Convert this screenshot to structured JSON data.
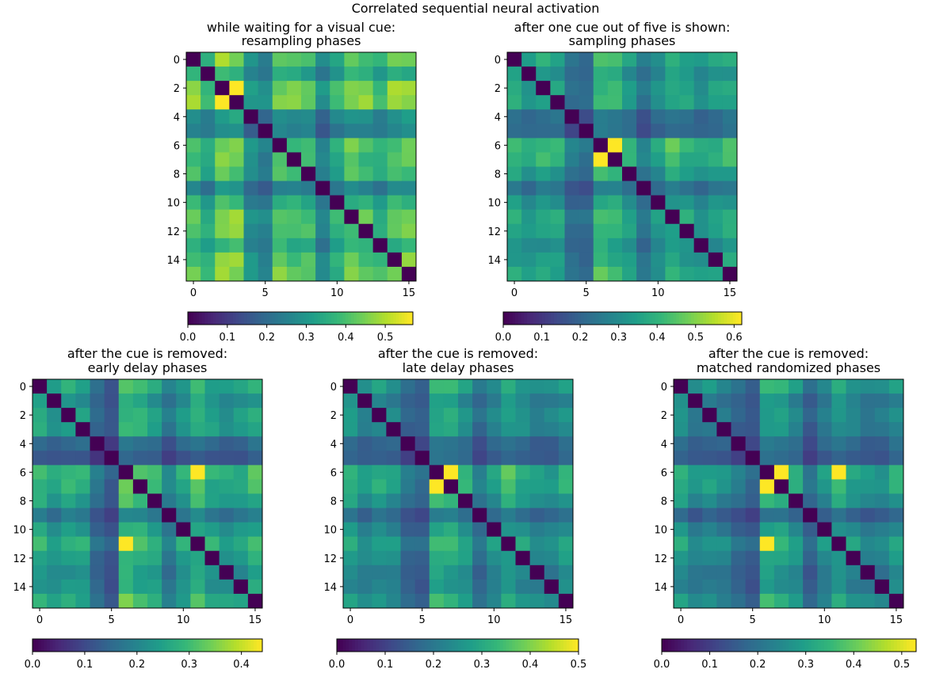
{
  "figure": {
    "suptitle": "Correlated sequential neural activation"
  },
  "colormap": {
    "name": "viridis",
    "stops": [
      "#440154",
      "#482878",
      "#3e4989",
      "#31688e",
      "#26828e",
      "#1f9e89",
      "#35b779",
      "#6ece58",
      "#b5de2b",
      "#fde725"
    ]
  },
  "chart_data": [
    {
      "type": "heatmap",
      "title_line1": "while waiting for a visual cue:",
      "title_line2": "resampling phases",
      "size": 16,
      "vmin": 0,
      "vmax": 0.57,
      "diagonal": 0.0,
      "highlight_pairs": [
        [
          2,
          3,
          0.57
        ]
      ],
      "row_strength": [
        0.46,
        0.32,
        0.56,
        0.55,
        0.22,
        0.17,
        0.46,
        0.42,
        0.4,
        0.18,
        0.33,
        0.48,
        0.44,
        0.34,
        0.47,
        0.5
      ],
      "xticks": [
        0,
        5,
        10,
        15
      ],
      "yticks": [
        0,
        2,
        4,
        6,
        8,
        10,
        12,
        14
      ],
      "colorbar_ticks": [
        0.0,
        0.1,
        0.2,
        0.3,
        0.4,
        0.5
      ],
      "colorbar_labels": [
        "0.0",
        "0.1",
        "0.2",
        "0.3",
        "0.4",
        "0.5"
      ]
    },
    {
      "type": "heatmap",
      "title_line1": "after one cue out of five is shown:",
      "title_line2": "sampling phases",
      "size": 16,
      "vmin": 0,
      "vmax": 0.62,
      "diagonal": 0.0,
      "highlight_pairs": [
        [
          6,
          7,
          0.62
        ]
      ],
      "row_strength": [
        0.42,
        0.32,
        0.4,
        0.38,
        0.16,
        0.14,
        0.55,
        0.5,
        0.36,
        0.18,
        0.3,
        0.44,
        0.38,
        0.3,
        0.36,
        0.42
      ],
      "xticks": [
        0,
        5,
        10,
        15
      ],
      "yticks": [
        0,
        2,
        4,
        6,
        8,
        10,
        12,
        14
      ],
      "colorbar_ticks": [
        0.0,
        0.1,
        0.2,
        0.3,
        0.4,
        0.5,
        0.6
      ],
      "colorbar_labels": [
        "0.0",
        "0.1",
        "0.2",
        "0.3",
        "0.4",
        "0.5",
        "0.6"
      ]
    },
    {
      "type": "heatmap",
      "title_line1": "after the cue is removed:",
      "title_line2": "early delay phases",
      "size": 16,
      "vmin": 0,
      "vmax": 0.44,
      "diagonal": 0.0,
      "highlight_pairs": [
        [
          6,
          11,
          0.44
        ]
      ],
      "row_strength": [
        0.3,
        0.22,
        0.28,
        0.26,
        0.1,
        0.06,
        0.4,
        0.34,
        0.28,
        0.14,
        0.24,
        0.36,
        0.26,
        0.22,
        0.24,
        0.32
      ],
      "xticks": [
        0,
        5,
        10,
        15
      ],
      "yticks": [
        0,
        2,
        4,
        6,
        8,
        10,
        12,
        14
      ],
      "colorbar_ticks": [
        0.0,
        0.1,
        0.2,
        0.3,
        0.4
      ],
      "colorbar_labels": [
        "0.0",
        "0.1",
        "0.2",
        "0.3",
        "0.4"
      ]
    },
    {
      "type": "heatmap",
      "title_line1": "after the cue is removed:",
      "title_line2": "late delay phases",
      "size": 16,
      "vmin": 0,
      "vmax": 0.5,
      "diagonal": 0.0,
      "highlight_pairs": [
        [
          6,
          7,
          0.5
        ]
      ],
      "row_strength": [
        0.32,
        0.22,
        0.28,
        0.24,
        0.12,
        0.1,
        0.42,
        0.4,
        0.3,
        0.14,
        0.24,
        0.36,
        0.28,
        0.22,
        0.22,
        0.3
      ],
      "xticks": [
        0,
        5,
        10,
        15
      ],
      "yticks": [
        0,
        2,
        4,
        6,
        8,
        10,
        12,
        14
      ],
      "colorbar_ticks": [
        0.0,
        0.1,
        0.2,
        0.3,
        0.4,
        0.5
      ],
      "colorbar_labels": [
        "0.0",
        "0.1",
        "0.2",
        "0.3",
        "0.4",
        "0.5"
      ]
    },
    {
      "type": "heatmap",
      "title_line1": "after the cue is removed:",
      "title_line2": "matched randomized phases",
      "size": 16,
      "vmin": 0,
      "vmax": 0.53,
      "diagonal": 0.0,
      "highlight_pairs": [
        [
          6,
          7,
          0.53
        ],
        [
          6,
          11,
          0.53
        ]
      ],
      "row_strength": [
        0.34,
        0.22,
        0.26,
        0.22,
        0.14,
        0.1,
        0.44,
        0.4,
        0.3,
        0.12,
        0.24,
        0.38,
        0.28,
        0.22,
        0.22,
        0.32
      ],
      "xticks": [
        0,
        5,
        10,
        15
      ],
      "yticks": [
        0,
        2,
        4,
        6,
        8,
        10,
        12,
        14
      ],
      "colorbar_ticks": [
        0.0,
        0.1,
        0.2,
        0.3,
        0.4,
        0.5
      ],
      "colorbar_labels": [
        "0.0",
        "0.1",
        "0.2",
        "0.3",
        "0.4",
        "0.5"
      ]
    }
  ]
}
